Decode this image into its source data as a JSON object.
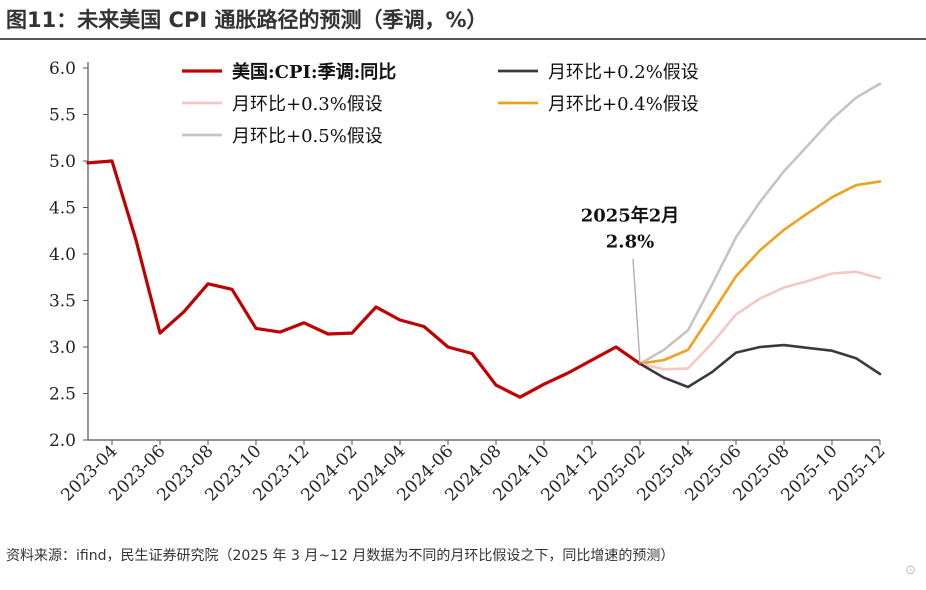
{
  "page": {
    "title": "图11：未来美国 CPI 通胀路径的预测（季调，%）",
    "source": "资料来源：ifind，民生证券研究院（2025 年 3 月~12 月数据为不同的月环比假设之下，同比增速的预测）",
    "watermark": "格隆汇"
  },
  "chart_data": {
    "type": "line",
    "title": "",
    "xlabel": "",
    "ylabel": "",
    "ylim": [
      2.0,
      6.0
    ],
    "yticks": [
      2.0,
      2.5,
      3.0,
      3.5,
      4.0,
      4.5,
      5.0,
      5.5,
      6.0
    ],
    "y_tick_labels": [
      "2.0",
      "2.5",
      "3.0",
      "3.5",
      "4.0",
      "4.5",
      "5.0",
      "5.5",
      "6.0"
    ],
    "x_tick_labels": [
      "2023-04",
      "2023-06",
      "2023-08",
      "2023-10",
      "2023-12",
      "2024-02",
      "2024-04",
      "2024-06",
      "2024-08",
      "2024-10",
      "2024-12",
      "2025-02",
      "2025-04",
      "2025-06",
      "2025-08",
      "2025-10",
      "2025-12"
    ],
    "x_tick_months": [
      "2023-04",
      "2023-06",
      "2023-08",
      "2023-10",
      "2023-12",
      "2024-02",
      "2024-04",
      "2024-06",
      "2024-08",
      "2024-10",
      "2024-12",
      "2025-02",
      "2025-04",
      "2025-06",
      "2025-08",
      "2025-10",
      "2025-12"
    ],
    "x_range": [
      "2023-03",
      "2025-12"
    ],
    "grid": false,
    "legend_position": "top",
    "series": [
      {
        "name": "美国:CPI:季调:同比",
        "color": "#c00000",
        "width": 3.2,
        "x": [
          "2023-03",
          "2023-04",
          "2023-05",
          "2023-06",
          "2023-07",
          "2023-08",
          "2023-09",
          "2023-10",
          "2023-11",
          "2023-12",
          "2024-01",
          "2024-02",
          "2024-03",
          "2024-04",
          "2024-05",
          "2024-06",
          "2024-07",
          "2024-08",
          "2024-09",
          "2024-10",
          "2024-11",
          "2024-12",
          "2025-01",
          "2025-02"
        ],
        "values": [
          4.98,
          5.0,
          4.15,
          3.15,
          3.38,
          3.68,
          3.62,
          3.2,
          3.16,
          3.26,
          3.14,
          3.15,
          3.43,
          3.29,
          3.22,
          3.0,
          2.93,
          2.59,
          2.46,
          2.6,
          2.72,
          2.86,
          3.0,
          2.82
        ]
      },
      {
        "name": "月环比+0.2%假设",
        "color": "#3a3a3a",
        "width": 2.6,
        "x": [
          "2025-02",
          "2025-03",
          "2025-04",
          "2025-05",
          "2025-06",
          "2025-07",
          "2025-08",
          "2025-09",
          "2025-10",
          "2025-11",
          "2025-12"
        ],
        "values": [
          2.82,
          2.67,
          2.57,
          2.73,
          2.94,
          3.0,
          3.02,
          2.99,
          2.96,
          2.88,
          2.71
        ]
      },
      {
        "name": "月环比+0.3%假设",
        "color": "#f4c6c6",
        "width": 2.6,
        "x": [
          "2025-02",
          "2025-03",
          "2025-04",
          "2025-05",
          "2025-06",
          "2025-07",
          "2025-08",
          "2025-09",
          "2025-10",
          "2025-11",
          "2025-12"
        ],
        "values": [
          2.82,
          2.76,
          2.77,
          3.04,
          3.35,
          3.52,
          3.64,
          3.71,
          3.79,
          3.81,
          3.74
        ]
      },
      {
        "name": "月环比+0.4%假设",
        "color": "#f0a020",
        "width": 2.6,
        "x": [
          "2025-02",
          "2025-03",
          "2025-04",
          "2025-05",
          "2025-06",
          "2025-07",
          "2025-08",
          "2025-09",
          "2025-10",
          "2025-11",
          "2025-12"
        ],
        "values": [
          2.82,
          2.86,
          2.97,
          3.36,
          3.76,
          4.04,
          4.26,
          4.44,
          4.61,
          4.74,
          4.78
        ]
      },
      {
        "name": "月环比+0.5%假设",
        "color": "#c4c4c4",
        "width": 2.6,
        "x": [
          "2025-02",
          "2025-03",
          "2025-04",
          "2025-05",
          "2025-06",
          "2025-07",
          "2025-08",
          "2025-09",
          "2025-10",
          "2025-11",
          "2025-12"
        ],
        "values": [
          2.82,
          2.97,
          3.18,
          3.67,
          4.18,
          4.56,
          4.89,
          5.17,
          5.45,
          5.68,
          5.83
        ]
      }
    ],
    "legend_order": [
      0,
      1,
      2,
      3,
      4
    ],
    "annotation": {
      "line1": "2025年2月",
      "line2": "2.8%",
      "x": "2025-02",
      "y": 2.82,
      "color": "#b0b0b0"
    }
  }
}
